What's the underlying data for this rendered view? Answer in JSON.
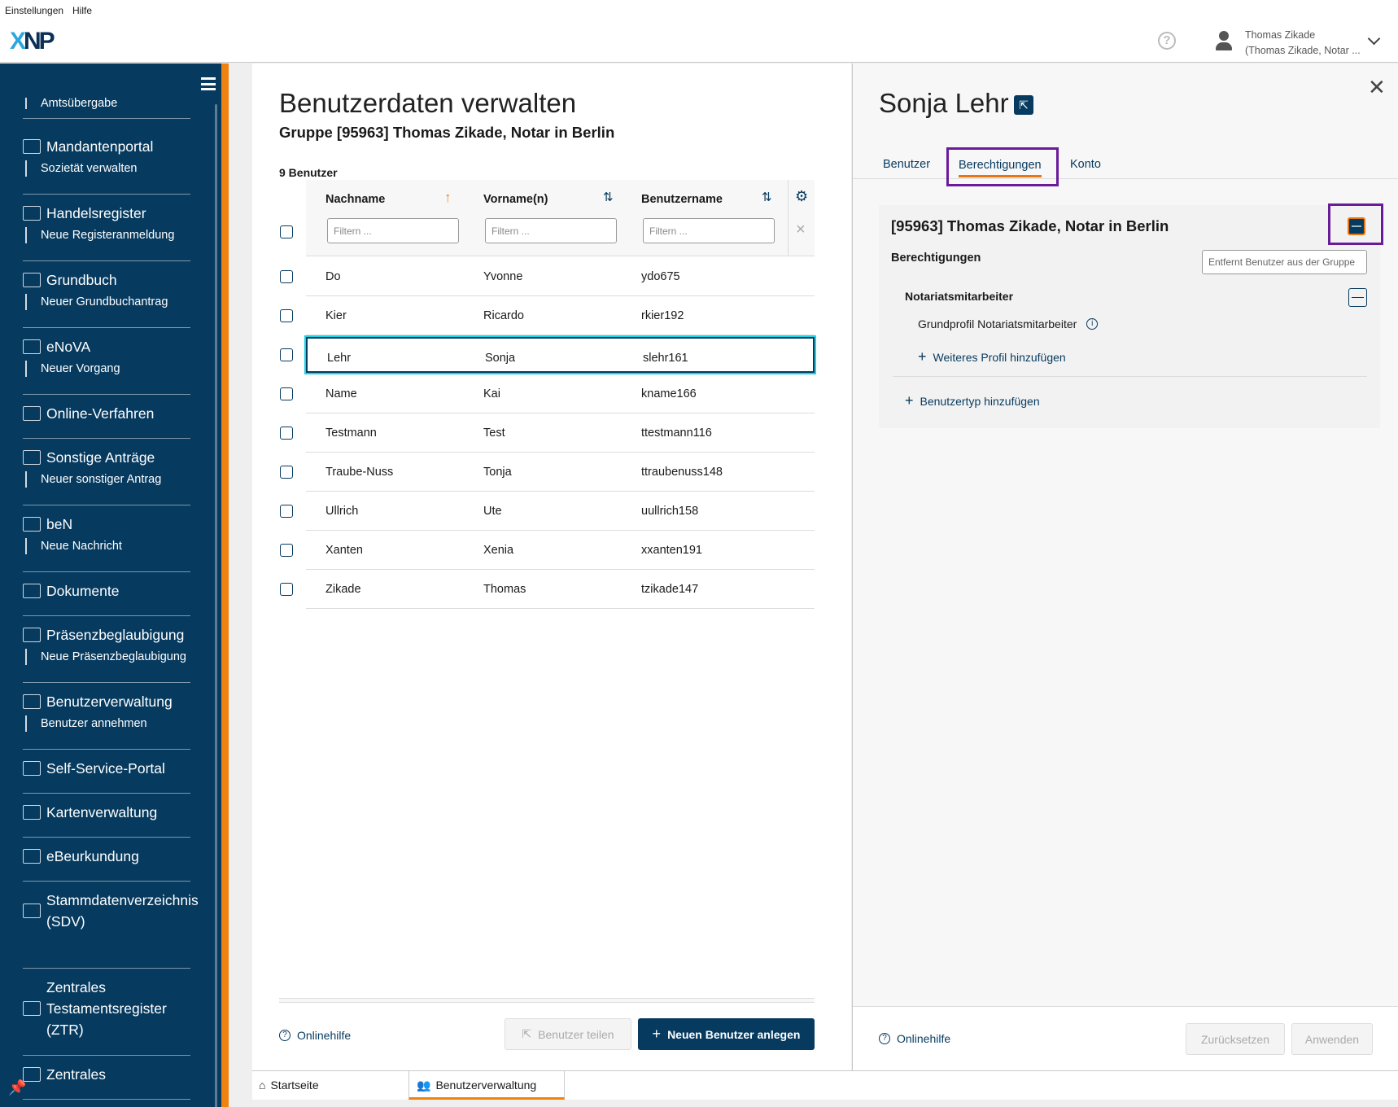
{
  "menubar": {
    "items": [
      "Einstellungen",
      "Hilfe"
    ]
  },
  "header": {
    "logo": "XNP",
    "user_name": "Thomas Zikade",
    "user_org": "(Thomas Zikade, Notar ..."
  },
  "sidebar": {
    "partial_item": "Amtsübergabe",
    "items": [
      {
        "label": "Mandantenportal",
        "sub": "Sozietät verwalten",
        "icon": "portal-icon"
      },
      {
        "label": "Handelsregister",
        "sub": "Neue Registeranmeldung",
        "icon": "register-icon"
      },
      {
        "label": "Grundbuch",
        "sub": "Neuer Grundbuchantrag",
        "icon": "book-icon"
      },
      {
        "label": "eNoVA",
        "sub": "Neuer Vorgang",
        "icon": "document-icon"
      },
      {
        "label": "Online-Verfahren",
        "sub": null,
        "icon": "online-icon"
      },
      {
        "label": "Sonstige Anträge",
        "sub": "Neuer sonstiger Antrag",
        "icon": "form-icon"
      },
      {
        "label": "beN",
        "sub": "Neue Nachricht",
        "icon": "mail-icon"
      },
      {
        "label": "Dokumente",
        "sub": null,
        "icon": "documents-icon"
      },
      {
        "label": "Präsenzbeglaubigung",
        "sub": "Neue Präsenzbeglaubigung",
        "icon": "certify-icon"
      },
      {
        "label": "Benutzerverwaltung",
        "sub": "Benutzer annehmen",
        "icon": "users-icon"
      },
      {
        "label": "Self-Service-Portal",
        "sub": null,
        "icon": "self-service-icon"
      },
      {
        "label": "Kartenverwaltung",
        "sub": null,
        "icon": "card-icon"
      },
      {
        "label": "eBeurkundung",
        "sub": null,
        "icon": "ebeurkundung-icon"
      },
      {
        "label": "Stammdatenverzeichnis (SDV)",
        "sub": null,
        "icon": "list-icon"
      },
      {
        "label": "Zentrales Testamentsregister (ZTR)",
        "sub": null,
        "icon": "folder-icon"
      },
      {
        "label": "Zentrales",
        "sub": null,
        "icon": "list-icon"
      }
    ]
  },
  "main": {
    "title": "Benutzerdaten verwalten",
    "subtitle": "Gruppe [95963] Thomas Zikade, Notar in Berlin",
    "count": "9 Benutzer",
    "columns": [
      "Nachname",
      "Vorname(n)",
      "Benutzername"
    ],
    "filter_placeholder": "Filtern ...",
    "rows": [
      [
        "Do",
        "Yvonne",
        "ydo675"
      ],
      [
        "Kier",
        "Ricardo",
        "rkier192"
      ],
      [
        "Lehr",
        "Sonja",
        "slehr161"
      ],
      [
        "Name",
        "Kai",
        "kname166"
      ],
      [
        "Testmann",
        "Test",
        "ttestmann116"
      ],
      [
        "Traube-Nuss",
        "Tonja",
        "ttraubenuss148"
      ],
      [
        "Ullrich",
        "Ute",
        "uullrich158"
      ],
      [
        "Xanten",
        "Xenia",
        "xxanten191"
      ],
      [
        "Zikade",
        "Thomas",
        "tzikade147"
      ]
    ],
    "selected_row": 2,
    "help": "Onlinehilfe",
    "share_button": "Benutzer teilen",
    "new_button": "Neuen Benutzer anlegen"
  },
  "detail": {
    "title": "Sonja Lehr",
    "tabs": [
      "Benutzer",
      "Berechtigungen",
      "Konto"
    ],
    "active_tab": 1,
    "group": "[95963] Thomas Zikade, Notar in Berlin",
    "tooltip": "Entfernt Benutzer aus der Gruppe",
    "section": "Berechtigungen",
    "usertype": "Notariatsmitarbeiter",
    "profile": "Grundprofil Notariatsmitarbeiter",
    "add_profile": "Weiteres Profil hinzufügen",
    "add_usertype": "Benutzertyp hinzufügen",
    "help": "Onlinehilfe",
    "reset": "Zurücksetzen",
    "apply": "Anwenden"
  },
  "bottom_tabs": [
    "Startseite",
    "Benutzerverwaltung"
  ],
  "colors": {
    "navy": "#063a5f",
    "orange": "#f0820f",
    "highlight": "#6a1b9a",
    "selected_row_outline": "#19d3e6"
  }
}
